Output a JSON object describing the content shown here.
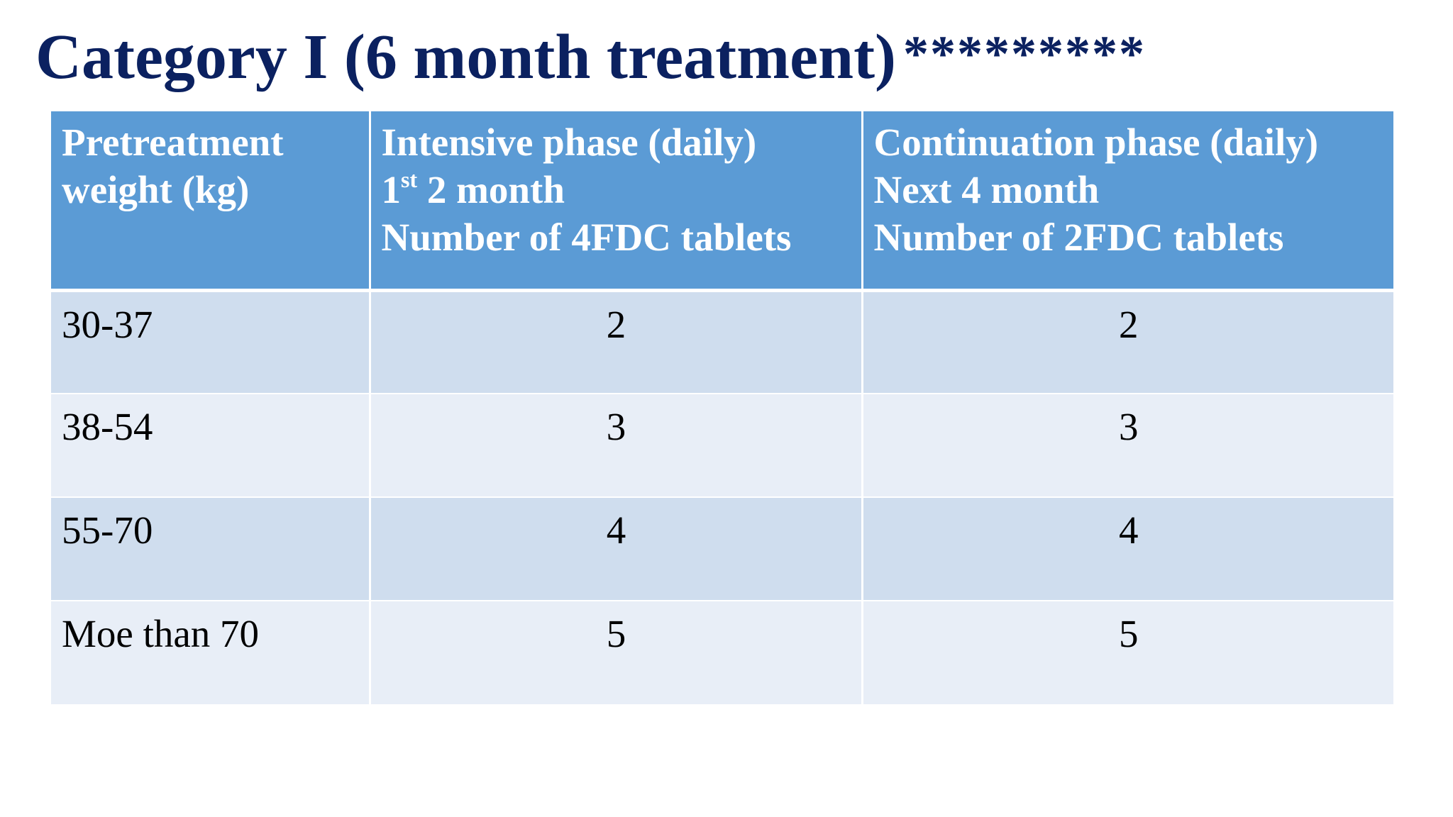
{
  "slide": {
    "title": "Category I (6 month treatment)",
    "title_stars": "*********"
  },
  "table": {
    "headers": [
      {
        "lines": [
          "Pretreatment",
          "weight (kg)"
        ]
      },
      {
        "line1": "Intensive phase (daily)",
        "line2_sup": "st",
        "line2_pre": "1",
        "line2_post": " 2 month",
        "line3": "Number of 4FDC tablets"
      },
      {
        "lines": [
          "Continuation phase (daily)",
          "Next 4 month",
          "Number of 2FDC tablets"
        ]
      }
    ],
    "rows": [
      {
        "weight": "30-37",
        "intensive": "2",
        "continuation": "2"
      },
      {
        "weight": "38-54",
        "intensive": "3",
        "continuation": "3"
      },
      {
        "weight": "55-70",
        "intensive": "4",
        "continuation": "4"
      },
      {
        "weight": "Moe than 70",
        "intensive": "5",
        "continuation": "5"
      }
    ]
  },
  "colors": {
    "title": "#0b2160",
    "header_bg": "#5b9bd5",
    "row_dark": "#cfddee",
    "row_light": "#e8eef7"
  }
}
